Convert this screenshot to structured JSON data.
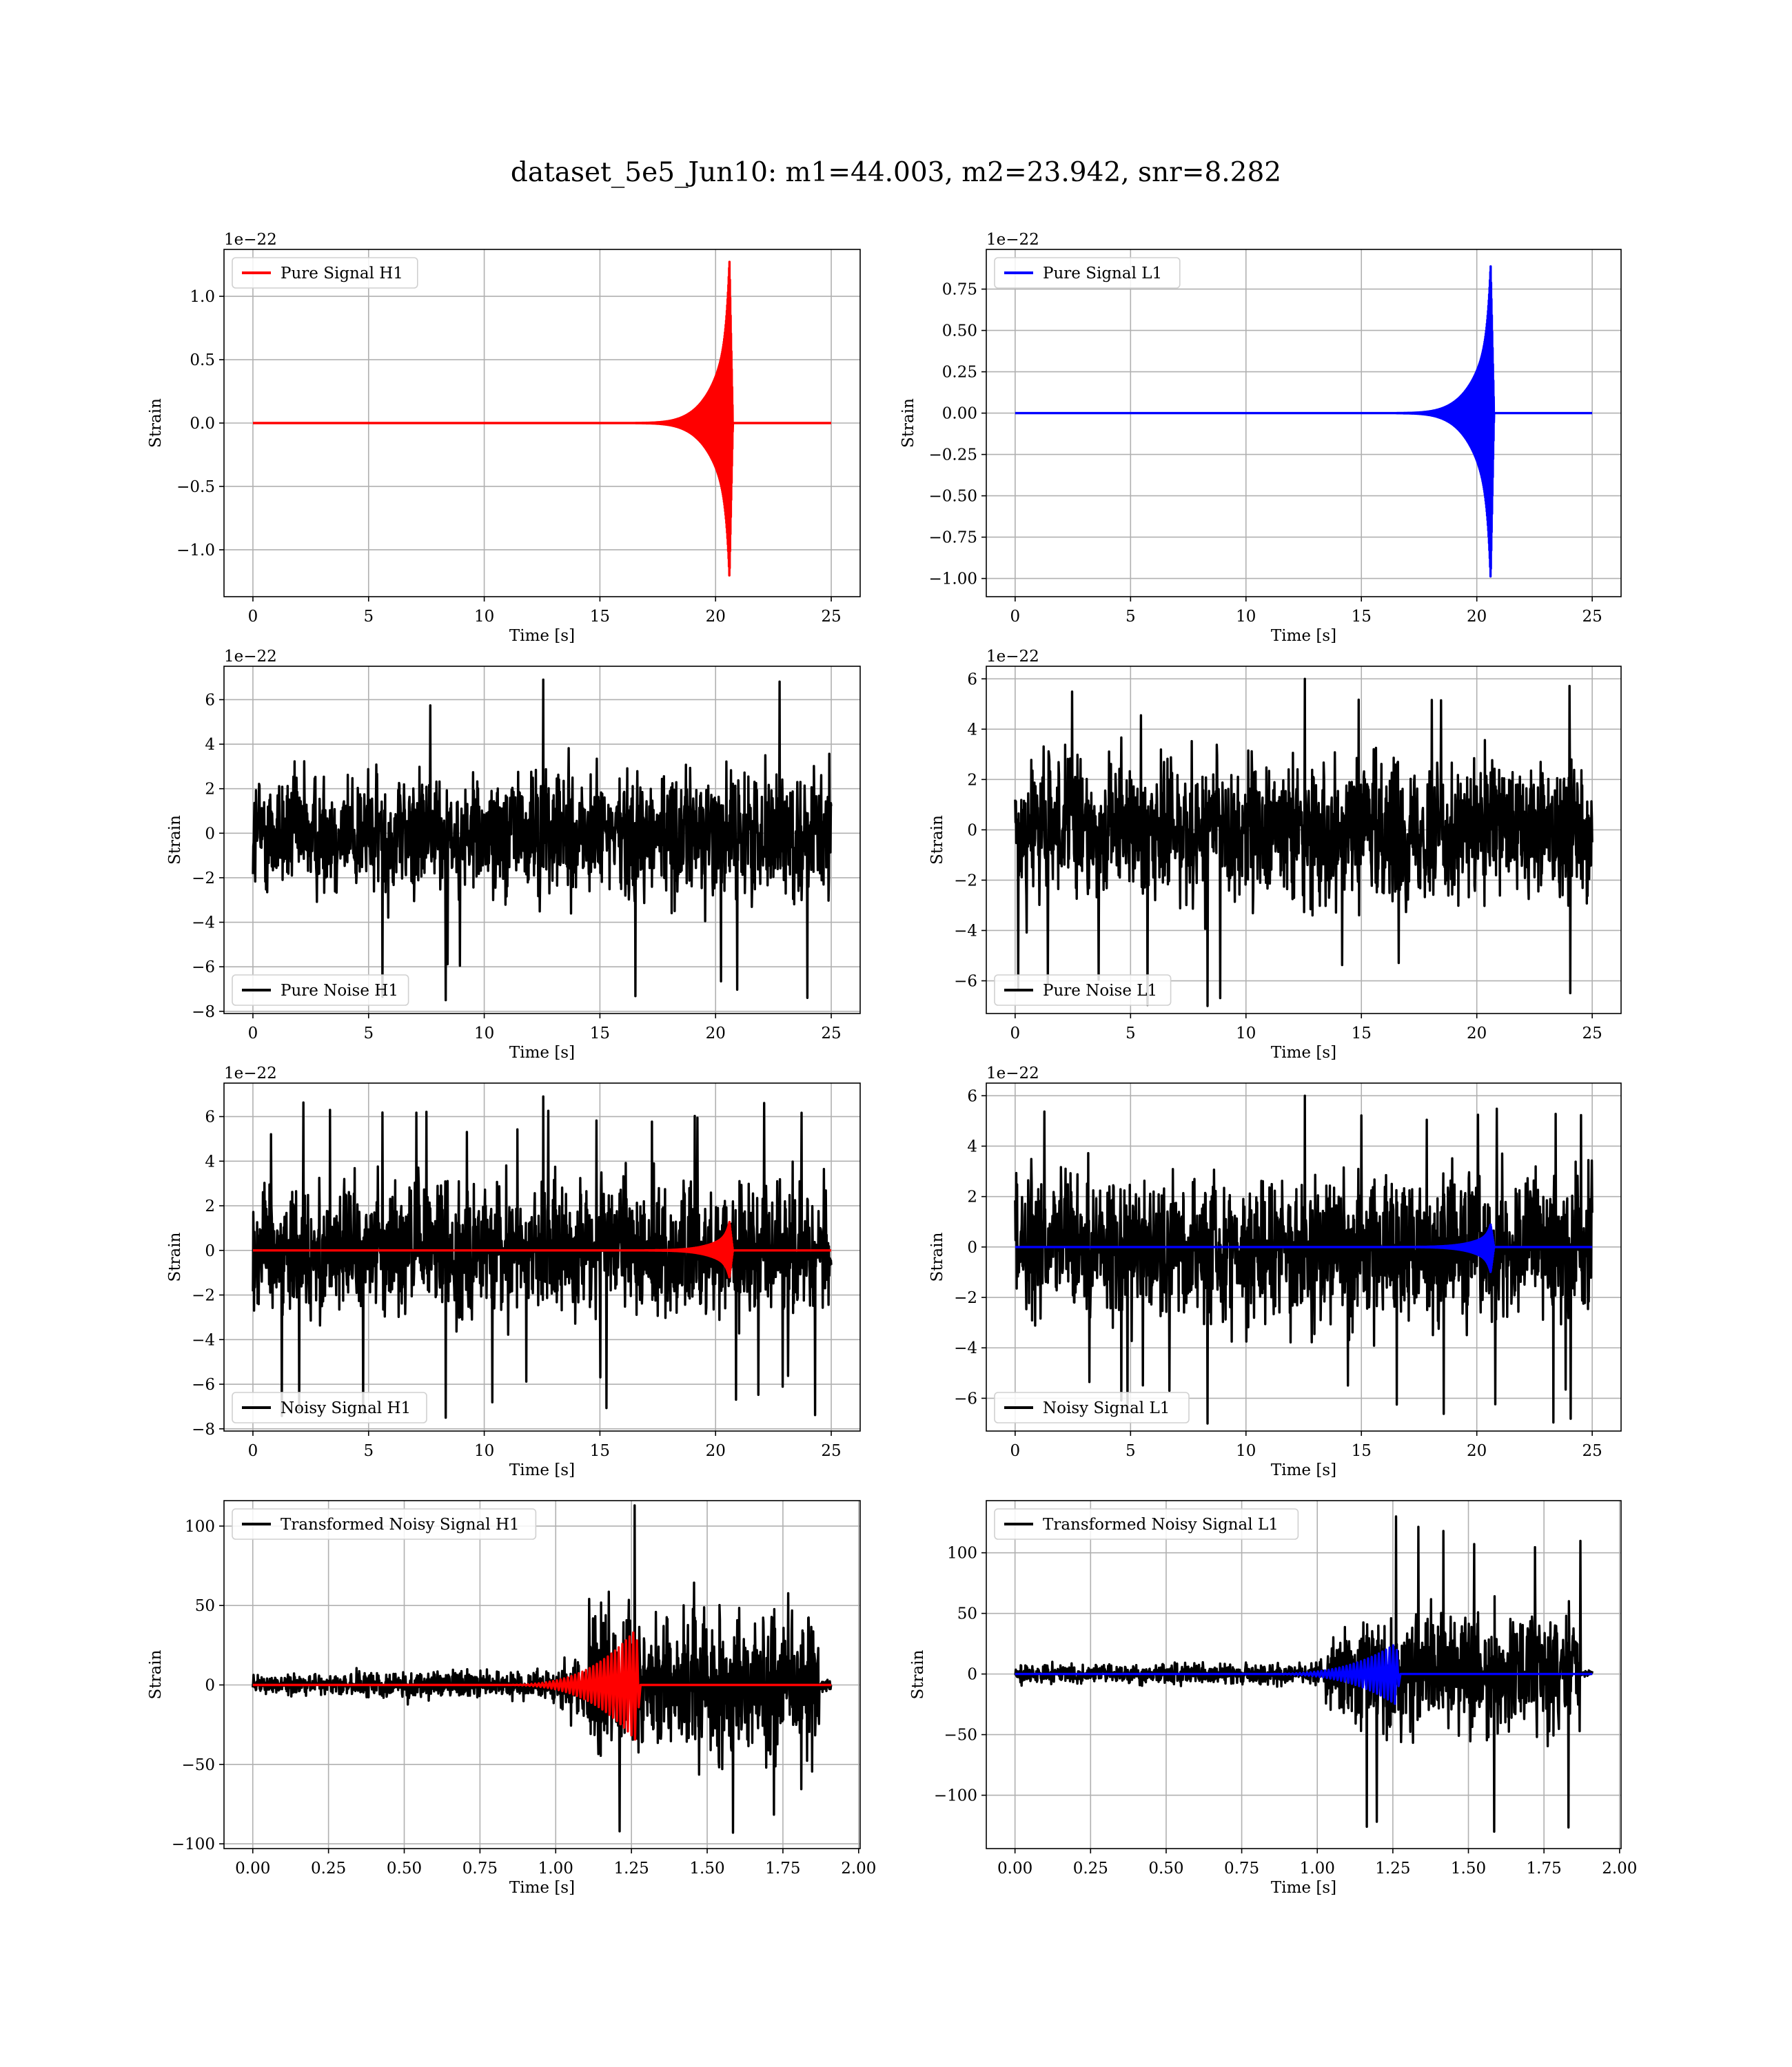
{
  "title": "dataset_5e5_Jun10: m1=44.003, m2=23.942, snr=8.282",
  "colors": {
    "h1_signal": "#ff0000",
    "l1_signal": "#0000ff",
    "noise": "#000000",
    "grid": "#b0b0b0"
  },
  "chart_data": [
    {
      "type": "line",
      "id": "pure-signal-h1",
      "xlabel": "Time [s]",
      "ylabel": "Strain",
      "offset_text": "1e−22",
      "xlim": [
        -1.25,
        26.25
      ],
      "ylim": [
        -1.37,
        1.37
      ],
      "xticks": [
        0,
        5,
        10,
        15,
        20,
        25
      ],
      "xtick_labels": [
        "0",
        "5",
        "10",
        "15",
        "20",
        "25"
      ],
      "yticks": [
        -1.0,
        -0.5,
        0.0,
        0.5,
        1.0
      ],
      "ytick_labels": [
        "−1.0",
        "−0.5",
        "0.0",
        "0.5",
        "1.0"
      ],
      "grid": true,
      "legend_position": "top-left",
      "series": [
        {
          "name": "Pure Signal H1",
          "color": "#ff0000",
          "kind": "chirp",
          "x_start": 0,
          "x_end": 25,
          "envelope": {
            "start_x": 15,
            "merger_x": 20.6,
            "ringdown_end_x": 20.75,
            "peak_low": -1.23,
            "peak_high": 1.29
          }
        }
      ]
    },
    {
      "type": "line",
      "id": "pure-signal-l1",
      "xlabel": "Time [s]",
      "ylabel": "Strain",
      "offset_text": "1e−22",
      "xlim": [
        -1.25,
        26.25
      ],
      "ylim": [
        -1.11,
        0.99
      ],
      "xticks": [
        0,
        5,
        10,
        15,
        20,
        25
      ],
      "xtick_labels": [
        "0",
        "5",
        "10",
        "15",
        "20",
        "25"
      ],
      "yticks": [
        -1.0,
        -0.75,
        -0.5,
        -0.25,
        0.0,
        0.25,
        0.5,
        0.75
      ],
      "ytick_labels": [
        "−1.00",
        "−0.75",
        "−0.50",
        "−0.25",
        "0.00",
        "0.25",
        "0.50",
        "0.75"
      ],
      "grid": true,
      "legend_position": "top-left",
      "series": [
        {
          "name": "Pure Signal L1",
          "color": "#0000ff",
          "kind": "chirp",
          "x_start": 0,
          "x_end": 25,
          "envelope": {
            "start_x": 15,
            "merger_x": 20.6,
            "ringdown_end_x": 20.75,
            "peak_low": -1.01,
            "peak_high": 0.9
          }
        }
      ]
    },
    {
      "type": "line",
      "id": "pure-noise-h1",
      "xlabel": "Time [s]",
      "ylabel": "Strain",
      "offset_text": "1e−22",
      "xlim": [
        -1.25,
        26.25
      ],
      "ylim": [
        -8.1,
        7.5
      ],
      "xticks": [
        0,
        5,
        10,
        15,
        20,
        25
      ],
      "xtick_labels": [
        "0",
        "5",
        "10",
        "15",
        "20",
        "25"
      ],
      "yticks": [
        -8,
        -6,
        -4,
        -2,
        0,
        2,
        4,
        6
      ],
      "ytick_labels": [
        "−8",
        "−6",
        "−4",
        "−2",
        "0",
        "2",
        "4",
        "6"
      ],
      "grid": true,
      "legend_position": "bottom-left",
      "series": [
        {
          "name": "Pure Noise H1",
          "color": "#000000",
          "kind": "noise",
          "x_start": 0,
          "x_end": 25,
          "band_low": -3.3,
          "band_high": 3.3,
          "max": 6.9,
          "min": -7.5
        }
      ]
    },
    {
      "type": "line",
      "id": "pure-noise-l1",
      "xlabel": "Time [s]",
      "ylabel": "Strain",
      "offset_text": "1e−22",
      "xlim": [
        -1.25,
        26.25
      ],
      "ylim": [
        -7.3,
        6.5
      ],
      "xticks": [
        0,
        5,
        10,
        15,
        20,
        25
      ],
      "xtick_labels": [
        "0",
        "5",
        "10",
        "15",
        "20",
        "25"
      ],
      "yticks": [
        -6,
        -4,
        -2,
        0,
        2,
        4,
        6
      ],
      "ytick_labels": [
        "−6",
        "−4",
        "−2",
        "0",
        "2",
        "4",
        "6"
      ],
      "grid": true,
      "legend_position": "bottom-left",
      "series": [
        {
          "name": "Pure Noise L1",
          "color": "#000000",
          "kind": "noise",
          "x_start": 0,
          "x_end": 25,
          "band_low": -3.3,
          "band_high": 3.3,
          "max": 6.0,
          "min": -7.0
        }
      ]
    },
    {
      "type": "line",
      "id": "noisy-signal-h1",
      "xlabel": "Time [s]",
      "ylabel": "Strain",
      "offset_text": "1e−22",
      "xlim": [
        -1.25,
        26.25
      ],
      "ylim": [
        -8.1,
        7.5
      ],
      "xticks": [
        0,
        5,
        10,
        15,
        20,
        25
      ],
      "xtick_labels": [
        "0",
        "5",
        "10",
        "15",
        "20",
        "25"
      ],
      "yticks": [
        -8,
        -6,
        -4,
        -2,
        0,
        2,
        4,
        6
      ],
      "ytick_labels": [
        "−8",
        "−6",
        "−4",
        "−2",
        "0",
        "2",
        "4",
        "6"
      ],
      "grid": true,
      "legend_position": "bottom-left",
      "series": [
        {
          "name": "Noisy Signal H1",
          "color": "#000000",
          "kind": "noise",
          "x_start": 0,
          "x_end": 25,
          "band_low": -3.3,
          "band_high": 3.3,
          "max": 6.9,
          "min": -7.5
        },
        {
          "color": "#ff0000",
          "kind": "chirp",
          "x_start": 0,
          "x_end": 25,
          "envelope": {
            "start_x": 15,
            "merger_x": 20.6,
            "ringdown_end_x": 20.75,
            "peak_low": -1.23,
            "peak_high": 1.29
          }
        }
      ]
    },
    {
      "type": "line",
      "id": "noisy-signal-l1",
      "xlabel": "Time [s]",
      "ylabel": "Strain",
      "offset_text": "1e−22",
      "xlim": [
        -1.25,
        26.25
      ],
      "ylim": [
        -7.3,
        6.5
      ],
      "xticks": [
        0,
        5,
        10,
        15,
        20,
        25
      ],
      "xtick_labels": [
        "0",
        "5",
        "10",
        "15",
        "20",
        "25"
      ],
      "yticks": [
        -6,
        -4,
        -2,
        0,
        2,
        4,
        6
      ],
      "ytick_labels": [
        "−6",
        "−4",
        "−2",
        "0",
        "2",
        "4",
        "6"
      ],
      "grid": true,
      "legend_position": "bottom-left",
      "series": [
        {
          "name": "Noisy Signal L1",
          "color": "#000000",
          "kind": "noise",
          "x_start": 0,
          "x_end": 25,
          "band_low": -3.3,
          "band_high": 3.3,
          "max": 6.0,
          "min": -7.0
        },
        {
          "color": "#0000ff",
          "kind": "chirp",
          "x_start": 0,
          "x_end": 25,
          "envelope": {
            "start_x": 15,
            "merger_x": 20.6,
            "ringdown_end_x": 20.75,
            "peak_low": -1.01,
            "peak_high": 0.9
          }
        }
      ]
    },
    {
      "type": "line",
      "id": "transformed-noisy-signal-h1",
      "xlabel": "Time [s]",
      "ylabel": "Strain",
      "offset_text": "",
      "xlim": [
        -0.095,
        2.005
      ],
      "ylim": [
        -103,
        116
      ],
      "xticks": [
        0,
        0.25,
        0.5,
        0.75,
        1.0,
        1.25,
        1.5,
        1.75,
        2.0
      ],
      "xtick_labels": [
        "0.00",
        "0.25",
        "0.50",
        "0.75",
        "1.00",
        "1.25",
        "1.50",
        "1.75",
        "2.00"
      ],
      "yticks": [
        -100,
        -50,
        0,
        50,
        100
      ],
      "ytick_labels": [
        "−100",
        "−50",
        "0",
        "50",
        "100"
      ],
      "grid": true,
      "legend_position": "top-left",
      "series": [
        {
          "name": "Transformed Noisy Signal H1",
          "color": "#000000",
          "kind": "whitened",
          "x_start": 0,
          "x_end": 1.91,
          "ramp_x": 1.1,
          "low_band": 8,
          "high_band": 50,
          "max": 113,
          "min": -93,
          "drop_x": 1.87
        },
        {
          "color": "#ff0000",
          "kind": "whitened-chirp",
          "x_start": 0,
          "x_end": 1.91,
          "envelope": {
            "start_x": 0.8,
            "merger_x": 1.265,
            "end_x": 1.28,
            "peak_low": -35,
            "peak_high": 35
          }
        }
      ]
    },
    {
      "type": "line",
      "id": "transformed-noisy-signal-l1",
      "xlabel": "Time [s]",
      "ylabel": "Strain",
      "offset_text": "",
      "xlim": [
        -0.095,
        2.005
      ],
      "ylim": [
        -144,
        143
      ],
      "xticks": [
        0,
        0.25,
        0.5,
        0.75,
        1.0,
        1.25,
        1.5,
        1.75,
        2.0
      ],
      "xtick_labels": [
        "0.00",
        "0.25",
        "0.50",
        "0.75",
        "1.00",
        "1.25",
        "1.50",
        "1.75",
        "2.00"
      ],
      "yticks": [
        -100,
        -50,
        0,
        50,
        100
      ],
      "ytick_labels": [
        "−100",
        "−50",
        "0",
        "50",
        "100"
      ],
      "grid": true,
      "legend_position": "top-left",
      "series": [
        {
          "name": "Transformed Noisy Signal L1",
          "color": "#000000",
          "kind": "whitened",
          "x_start": 0,
          "x_end": 1.91,
          "ramp_x": 1.08,
          "low_band": 8,
          "high_band": 50,
          "max": 130,
          "min": -130,
          "drop_x": 1.87
        },
        {
          "color": "#0000ff",
          "kind": "whitened-chirp",
          "x_start": 0,
          "x_end": 1.91,
          "envelope": {
            "start_x": 0.8,
            "merger_x": 1.26,
            "end_x": 1.275,
            "peak_low": -25,
            "peak_high": 25
          }
        }
      ]
    }
  ]
}
